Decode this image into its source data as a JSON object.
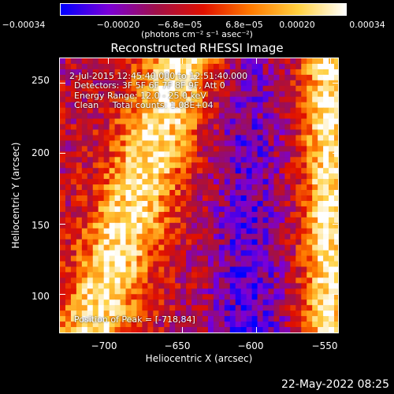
{
  "chart_data": {
    "type": "heatmap",
    "title": "Reconstructed RHESSI Image",
    "xlabel": "Heliocentric X (arcsec)",
    "ylabel": "Heliocentric Y (arcsec)",
    "xlim": [
      -733,
      -544
    ],
    "ylim": [
      72,
      268
    ],
    "x_ticks": [
      "−700",
      "−650",
      "−600",
      "−550"
    ],
    "x_tick_values": [
      -700,
      -650,
      -600,
      -550
    ],
    "y_ticks": [
      "100",
      "150",
      "200",
      "250"
    ],
    "y_tick_values": [
      100,
      150,
      200,
      250
    ],
    "colorbar": {
      "ticks": [
        "−0.00034",
        "−0.00020",
        "−6.8e−05",
        "6.8e−05",
        "0.00020",
        "0.00034"
      ],
      "tick_values": [
        -0.00034,
        -0.0002,
        -6.8e-05,
        6.8e-05,
        0.0002,
        0.00034
      ],
      "range": [
        -0.00034,
        0.00034
      ],
      "unit_label": "(photons cm⁻² s⁻¹ asec⁻²)",
      "colors": [
        "#0000ff",
        "#7a00d8",
        "#a0104a",
        "#e01000",
        "#ff7a00",
        "#ffd040",
        "#ffffff"
      ]
    },
    "annotations": {
      "time": "2-Jul-2015 12:45:40.000 to 12:51:40.000",
      "detectors": "Detectors: 3F 5F 6F 7F 8F 9F, Att 0",
      "energy": "Energy Range: 12.0 - 25.0 keV",
      "clean": "Clean     Total counts: 1.08E+04",
      "peak": "Position of Peak = [-718,84]"
    },
    "peak_position": [
      -718,
      84
    ]
  },
  "footer_date": "22-May-2022 08:25"
}
